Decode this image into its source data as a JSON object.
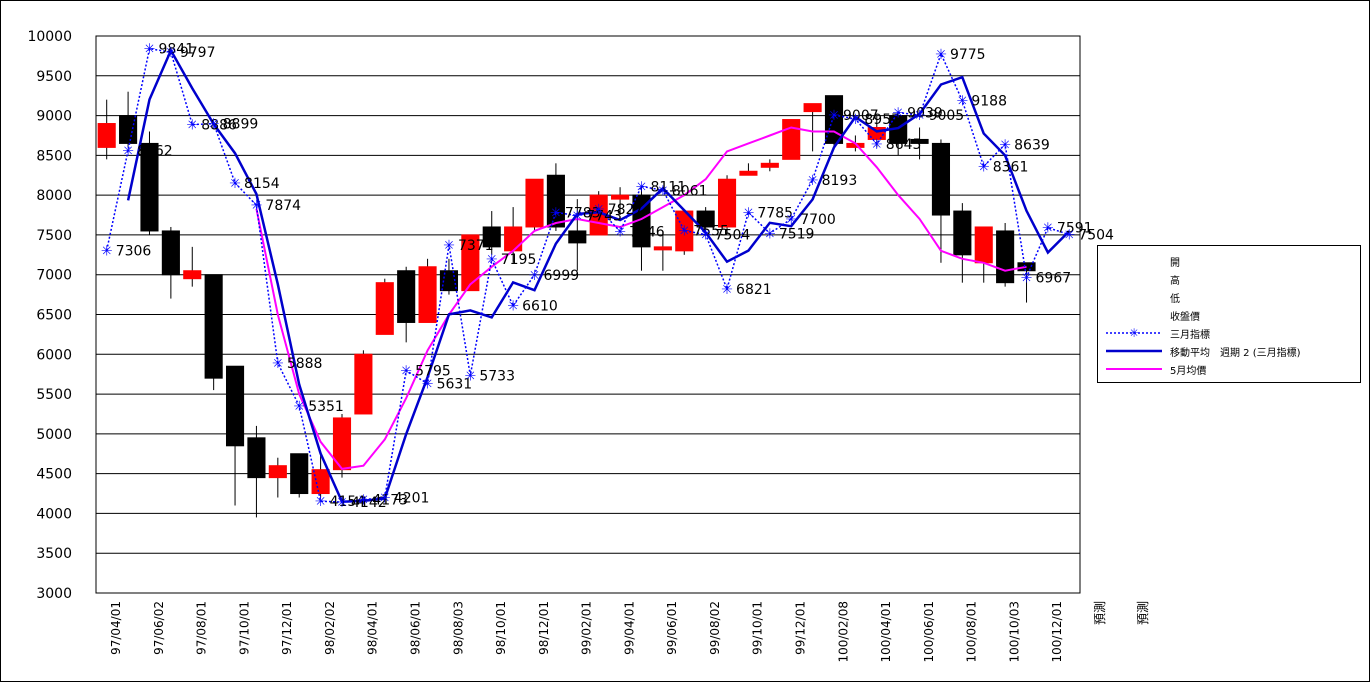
{
  "chart_data": {
    "type": "candlestick",
    "ylim": [
      3000,
      10000
    ],
    "yticks": [
      3000,
      3500,
      4000,
      4500,
      5000,
      5500,
      6000,
      6500,
      7000,
      7500,
      8000,
      8500,
      9000,
      9500,
      10000
    ],
    "grid": true,
    "legend_position": "right",
    "x_tick_labels": [
      "97/04/01",
      "97/06/02",
      "97/08/01",
      "97/10/01",
      "97/12/01",
      "98/02/02",
      "98/04/01",
      "98/06/01",
      "98/08/03",
      "98/10/01",
      "98/12/01",
      "99/02/01",
      "99/04/01",
      "99/06/01",
      "99/08/02",
      "99/10/01",
      "99/12/01",
      "100/02/08",
      "100/04/01",
      "100/06/01",
      "100/08/01",
      "100/10/03",
      "100/12/01",
      "預測",
      "預測"
    ],
    "candles": [
      {
        "open": 8600,
        "high": 9200,
        "low": 8450,
        "close": 8900
      },
      {
        "open": 9000,
        "high": 9300,
        "low": 8600,
        "close": 8650
      },
      {
        "open": 8650,
        "high": 8800,
        "low": 7500,
        "close": 7550
      },
      {
        "open": 7550,
        "high": 7600,
        "low": 6700,
        "close": 7000
      },
      {
        "open": 6950,
        "high": 7350,
        "low": 6850,
        "close": 7050
      },
      {
        "open": 7000,
        "high": 7000,
        "low": 5550,
        "close": 5700
      },
      {
        "open": 5850,
        "high": 5850,
        "low": 4100,
        "close": 4850
      },
      {
        "open": 4950,
        "high": 5100,
        "low": 3950,
        "close": 4450
      },
      {
        "open": 4450,
        "high": 4700,
        "low": 4200,
        "close": 4600
      },
      {
        "open": 4750,
        "high": 4750,
        "low": 4200,
        "close": 4250
      },
      {
        "open": 4250,
        "high": 4750,
        "low": 4200,
        "close": 4550
      },
      {
        "open": 4550,
        "high": 5250,
        "low": 4450,
        "close": 5200
      },
      {
        "open": 5250,
        "high": 6050,
        "low": 5250,
        "close": 6000
      },
      {
        "open": 6250,
        "high": 6950,
        "low": 6250,
        "close": 6900
      },
      {
        "open": 7050,
        "high": 7100,
        "low": 6150,
        "close": 6400
      },
      {
        "open": 6400,
        "high": 7200,
        "low": 6400,
        "close": 7100
      },
      {
        "open": 7050,
        "high": 7200,
        "low": 6750,
        "close": 6800
      },
      {
        "open": 6800,
        "high": 7500,
        "low": 6800,
        "close": 7500
      },
      {
        "open": 7600,
        "high": 7800,
        "low": 7250,
        "close": 7350
      },
      {
        "open": 7300,
        "high": 7850,
        "low": 7150,
        "close": 7600
      },
      {
        "open": 7600,
        "high": 8200,
        "low": 7550,
        "close": 8200
      },
      {
        "open": 8250,
        "high": 8400,
        "low": 7550,
        "close": 7600
      },
      {
        "open": 7550,
        "high": 7950,
        "low": 7050,
        "close": 7400
      },
      {
        "open": 7500,
        "high": 8050,
        "low": 7500,
        "close": 8000
      },
      {
        "open": 7950,
        "high": 8100,
        "low": 7750,
        "close": 8000
      },
      {
        "open": 8000,
        "high": 8100,
        "low": 7050,
        "close": 7350
      },
      {
        "open": 7350,
        "high": 7550,
        "low": 7050,
        "close": 7350
      },
      {
        "open": 7300,
        "high": 7800,
        "low": 7250,
        "close": 7800
      },
      {
        "open": 7800,
        "high": 7850,
        "low": 7500,
        "close": 7600
      },
      {
        "open": 7600,
        "high": 8250,
        "low": 7550,
        "close": 8200
      },
      {
        "open": 8250,
        "high": 8400,
        "low": 8250,
        "close": 8300
      },
      {
        "open": 8350,
        "high": 8450,
        "low": 8300,
        "close": 8400
      },
      {
        "open": 8450,
        "high": 8950,
        "low": 8450,
        "close": 8950
      },
      {
        "open": 9050,
        "high": 9150,
        "low": 8550,
        "close": 9150
      },
      {
        "open": 9250,
        "high": 9250,
        "low": 8600,
        "close": 8650
      },
      {
        "open": 8600,
        "high": 8750,
        "low": 8550,
        "close": 8650
      },
      {
        "open": 8700,
        "high": 9000,
        "low": 8600,
        "close": 8850
      },
      {
        "open": 9000,
        "high": 9000,
        "low": 8500,
        "close": 8650
      },
      {
        "open": 8700,
        "high": 8850,
        "low": 8450,
        "close": 8650
      },
      {
        "open": 8650,
        "high": 8700,
        "low": 7150,
        "close": 7750
      },
      {
        "open": 7800,
        "high": 7900,
        "low": 6900,
        "close": 7250
      },
      {
        "open": 7150,
        "high": 7600,
        "low": 6900,
        "close": 7600
      },
      {
        "open": 7550,
        "high": 7650,
        "low": 6850,
        "close": 6900
      },
      {
        "open": 7150,
        "high": 7150,
        "low": 6650,
        "close": 7050
      }
    ],
    "series": [
      {
        "name": "三月指標",
        "values": [
          7306,
          8562,
          9841,
          9797,
          8886,
          8899,
          8154,
          7874,
          5888,
          5351,
          4154,
          4142,
          4173,
          4201,
          5795,
          5631,
          7371,
          5733,
          7195,
          6610,
          6999,
          7783,
          7743,
          7827,
          7546,
          8111,
          8061,
          7555,
          7504,
          6821,
          7785,
          7519,
          7700,
          8193,
          9007,
          8957,
          8645,
          9039,
          9005,
          9775,
          9188,
          8361,
          8639,
          6967,
          7591,
          7504
        ],
        "point_labels": [
          "7306",
          "8562",
          "9841",
          "9797",
          "8886",
          "8899",
          "8154",
          "7874",
          "5888",
          "5351",
          "4154",
          "4142",
          "4173",
          "4201",
          "5795",
          "5631",
          "7371",
          "5733",
          "7195",
          "6610",
          "6999",
          "7783",
          "7743",
          "7827",
          "7546",
          "8111",
          "8061",
          "7555",
          "7504",
          "6821",
          "7785",
          "7519",
          "7700",
          "8193",
          "9007",
          "8957",
          "8645",
          "9039",
          "9005",
          "9775",
          "9188",
          "8361",
          "8639",
          "6967",
          "7591",
          "7504"
        ]
      },
      {
        "name": "移動平均　週期 2 (三月指標)",
        "values": [
          null,
          7934,
          9202,
          9819,
          9342,
          8893,
          8527,
          8014,
          6881,
          5620,
          4753,
          4148,
          4158,
          4187,
          4998,
          5713,
          6501,
          6552,
          6464,
          6903,
          6805,
          7391,
          7763,
          7785,
          7687,
          7829,
          8086,
          7808,
          7530,
          7163,
          7303,
          7652,
          7610,
          7947,
          8600,
          8982,
          8801,
          8842,
          9022,
          9390,
          9482,
          8775,
          8500,
          7803,
          7279,
          7548
        ]
      },
      {
        "name": "5月均價",
        "values": [
          null,
          null,
          null,
          null,
          7830,
          6500,
          5500,
          4900,
          4560,
          4600,
          4930,
          5450,
          6050,
          6500,
          6880,
          7100,
          7300,
          7550,
          7650,
          7700,
          7650,
          7600,
          7700,
          7850,
          8000,
          8200,
          8550,
          8650,
          8750,
          8850,
          8800,
          8800,
          8650,
          8350,
          8000,
          7700,
          7300,
          7200,
          7150,
          7050,
          7100
        ]
      }
    ],
    "legend": [
      "開",
      "高",
      "低",
      "收盤價",
      "三月指標",
      "移動平均　週期 2 (三月指標)",
      "5月均價"
    ]
  },
  "colors": {
    "up_candle": "#ff0000",
    "down_candle": "#000000",
    "index_series": "#0000ff",
    "moving_average": "#0000cc",
    "five_month_average": "#ff00ff",
    "grid": "#000000"
  }
}
